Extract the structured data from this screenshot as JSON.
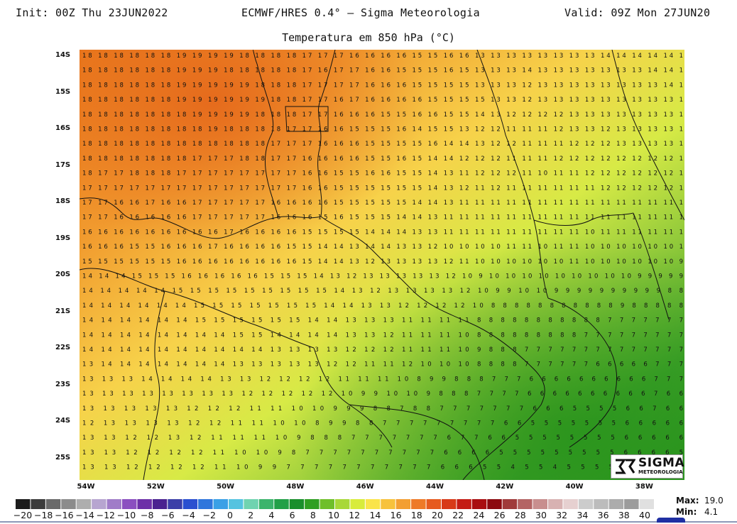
{
  "header": {
    "init": "Init: 00Z Thu 23JUN2022",
    "model": "ECMWF/HRES 0.4° – Sigma Meteorologia",
    "valid": "Valid: 09Z Mon 27JUN20"
  },
  "map": {
    "title": "Temperatura em 850 hPa (°C)",
    "lat_labels": [
      "14S",
      "15S",
      "16S",
      "17S",
      "18S",
      "19S",
      "20S",
      "21S",
      "22S",
      "23S",
      "24S",
      "25S"
    ],
    "lon_labels": [
      "54W",
      "52W",
      "50W",
      "48W",
      "46W",
      "44W",
      "42W",
      "40W",
      "38W"
    ],
    "grid_values": [
      "18 18 18 18 18 18 19 19 19 19 18 18 18 18 17 17 17 16 16 16 16 15 15 16 16 13 13 13 13 13 13 13 13 14 14 14 14 14 1",
      "18 18 18 18 18 18 19 19 19 18 18 18 18 18 17 16 17 17 16 16 15 15 15 16 15 13 13 13 14 13 13 13 13 13 13 13 14 14 1",
      "18 18 18 18 18 18 19 19 19 19 19 18 18 18 17 17 17 17 16 16 16 15 15 15 15 13 13 13 12 13 13 13 13 13 13 13 13 14 1",
      "18 18 18 18 18 18 19 19 19 19 19 19 18 18 17 17 16 17 16 16 16 16 15 15 15 15 13 13 12 13 13 13 13 13 13 13 13 13 1",
      "18 18 18 18 18 18 18 19 19 19 19 18 18 18 17 17 16 16 16 15 15 16 16 15 15 14 13 12 12 12 12 13 13 13 13 13 13 13 1",
      "18 18 18 18 18 18 18 18 19 18 18 18 18 17 17 16 16 15 15 15 16 14 15 15 13 12 12 11 11 11 12 13 13 12 13 13 13 13 1",
      "18 18 18 18 18 18 18 18 18 18 18 18 17 17 17 16 16 16 15 15 15 15 16 14 14 13 12 12 11 11 11 12 12 12 13 13 13 13 1",
      "18 18 18 18 18 18 18 17 17 17 18 18 17 17 16 16 16 16 15 15 16 15 14 14 12 12 12 11 11 11 12 12 12 12 12 12 12 12 1",
      "18 17 17 18 18 18 17 17 17 17 17 17 17 17 16 16 15 15 16 16 15 15 14 13 11 12 12 12 11 10 11 11 12 12 12 12 12 12 1",
      "17 17 17 17 17 17 17 17 17 17 17 17 17 17 16 16 15 15 15 15 15 15 14 13 12 11 12 11 11 11 11 11 11 12 12 12 12 12 1",
      "17 17 16 16 17 16 16 17 17 17 17 17 16 16 16 16 15 15 15 15 15 14 14 13 11 11 11 11 11 11 11 11 11 11 11 11 11 11 1",
      "17 17 16 16 16 16 16 17 17 17 17 17 16 16 16 15 16 15 15 15 14 14 13 11 11 11 11 11 11 11 11 11 11 11 11 11 11 11 1",
      "16 16 16 16 16 16 16 16 16 17 16 16 16 16 15 15 15 15 14 14 14 13 13 11 11 11 11 11 11 11 11 11 10 11 11 11 11 11 1",
      "16 16 16 15 15 16 16 16 17 16 16 16 16 15 15 14 14 13 14 14 13 13 12 10 10 10 10 11 11 10 11 11 10 10 10 10 10 10 1",
      "15 15 15 15 15 15 16 16 16 16 16 16 16 16 15 14 14 13 12 13 13 13 13 12 11 10 10 10 10 10 10 11 10 10 10 10 10 10 9",
      "14 14 14 15 15 15 16 16 16 16 16 15 15 15 14 13 12 13 13 13 13 13 12 10 9 10 10 10 10 10 10 10 10 10 9 9 9 9 9",
      "14 14 14 14 14 15 15 15 15 15 15 15 15 15 14 13 12 13 13 13 13 12 10 9 9 10 10 9 9 9 9 9 9 9 9 9 9 8 8",
      "14 14 14 14 14 14 15 15 15 15 15 15 15 14 14 13 13 12 12 12 12 10 8 8 8 8 8 8 8 8 8 8 8 9 8 8 8 8 8",
      "14 14 14 14 14 14 15 15 15 15 15 15 14 14 13 13 13 11 11 11 11 8 8 8 8 8 8 8 8 8 8 8 7 7 7 7 7 7 7",
      "14 14 14 14 14 14 14 14 15 15 14 14 14 14 13 13 12 11 11 11 10 8 8 8 8 8 8 8 8 8 7 7 7 7 7 7 7 7 7",
      "14 14 14 14 14 14 14 14 14 14 13 13 13 13 12 12 12 11 11 11 10 9 8 8 8 7 7 7 7 7 7 7 7 7 7 7 7 7 7",
      "13 14 14 14 14 14 14 14 13 13 13 13 13 12 12 11 11 12 10 10 10 8 8 8 8 7 7 7 7 7 7 6 6 6 6 6 7 7 7",
      "13 13 13 14 14 14 14 13 13 12 12 12 12 11 11 11 10 8 9 9 8 8 8 7 7 7 6 6 6 6 6 6 6 6 6 6 7 7 7",
      "13 13 13 13 13 13 13 13 12 12 12 12 12 10 9 9 10 10 9 8 8 8 7 7 7 7 6 6 6 6 6 6 6 6 6 6 7 6 6",
      "13 13 13 13 13 12 12 12 11 11 10 10 9 9 9 8 8 7 8 8 7 7 7 7 7 7 7 6 6 6 5 5 5 5 6 6 7 6 6",
      "12 13 13 13 13 12 12 11 11 10 10 8 9 9 8 8 7 7 7 7 7 7 7 7 7 6 6 5 5 5 5 5 5 5 6 6 6 6 6",
      "13 13 12 12 13 12 11 11 11 10 9 8 8 8 7 7 7 7 7 7 7 6 7 7 6 6 5 5 5 5 5 5 5 5 6 6 6 6 6",
      "13 13 12 12 12 12 11 10 10 9 8 7 7 7 7 7 7 7 7 7 7 6 6 6 6 5 5 5 5 5 5 5 5 5 6 6 6 6 5",
      "13 13 12 12 12 12 11 10 9 9 7 7 7 7 7 7 7 7 7 7 7 6 6 6 5 5 4 5 5 4 5 5 5 5 5 6 6 6 5"
    ],
    "logo_text": "SIGMA",
    "logo_subtext": "METEOROLOGIA"
  },
  "colorbar": {
    "labels": [
      "−20",
      "−18",
      "−16",
      "−14",
      "−12",
      "−10",
      "−8",
      "−6",
      "−4",
      "−2",
      "0",
      "2",
      "4",
      "6",
      "8",
      "10",
      "12",
      "14",
      "16",
      "18",
      "20",
      "22",
      "24",
      "26",
      "28",
      "30",
      "32",
      "34",
      "36",
      "38",
      "40"
    ],
    "colors": [
      "#1c1c1c",
      "#3c3c3c",
      "#6a6a6a",
      "#8c8c8c",
      "#aeaeae",
      "#b7a5d0",
      "#a07cc8",
      "#8b4fc0",
      "#6d30a8",
      "#4a2290",
      "#3c3fa8",
      "#2a4fd0",
      "#2f76dc",
      "#3aa0e6",
      "#55c3e0",
      "#70d3b0",
      "#3cb46c",
      "#22a048",
      "#1a8f2c",
      "#2f9f22",
      "#6fbf2a",
      "#a8d838",
      "#d8ec3c",
      "#fae44a",
      "#f7c23c",
      "#f39f32",
      "#ee7a28",
      "#e65a1e",
      "#d83a18",
      "#c41c14",
      "#a90e10",
      "#8c0a10",
      "#a03a3a",
      "#b46464",
      "#c88e8e",
      "#d8b2b2",
      "#e6d0d0",
      "#cccccc",
      "#bcbcbc",
      "#acacac",
      "#9c9c9c",
      "#e0e0e0"
    ],
    "max_label": "Max:",
    "max_value": "19.0",
    "min_label": "Min:",
    "min_value": "4.1"
  }
}
